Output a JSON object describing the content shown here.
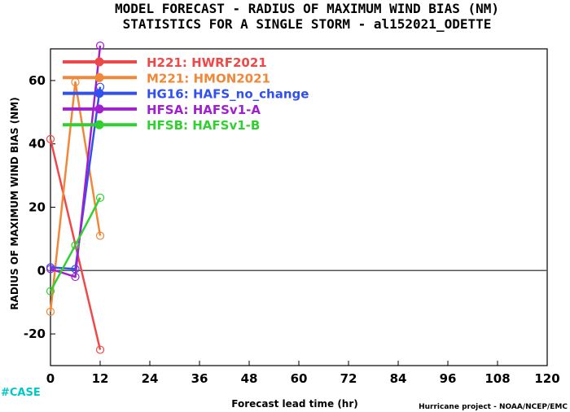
{
  "chart_data": {
    "type": "line",
    "title": "MODEL FORECAST - RADIUS OF MAXIMUM WIND BIAS (NM)",
    "subtitle": "STATISTICS FOR A SINGLE STORM - al152021_ODETTE",
    "xlabel": "Forecast lead time (hr)",
    "ylabel": "RADIUS OF MAXIMUM WIND BIAS (NM)",
    "xlim": [
      0,
      120
    ],
    "ylim": [
      -30,
      70
    ],
    "xticks": [
      0,
      12,
      24,
      36,
      48,
      60,
      72,
      84,
      96,
      108,
      120
    ],
    "yticks": [
      -20,
      0,
      20,
      40,
      60
    ],
    "zero_line": true,
    "legend_position": "top-left",
    "series": [
      {
        "name": "H221: HWRF2021",
        "color": "#f04848",
        "x": [
          0,
          12
        ],
        "y": [
          41.5,
          -25
        ]
      },
      {
        "name": "M221: HMON2021",
        "color": "#f08838",
        "x": [
          0,
          6,
          12
        ],
        "y": [
          -13,
          59.5,
          11
        ]
      },
      {
        "name": "HG16: HAFS_no_change",
        "color": "#3050f0",
        "x": [
          0,
          6,
          12
        ],
        "y": [
          1,
          0.5,
          58
        ]
      },
      {
        "name": "HFSA: HAFSv1-A",
        "color": "#a020d0",
        "x": [
          0,
          6,
          12
        ],
        "y": [
          0.5,
          -2,
          71
        ]
      },
      {
        "name": "HFSB: HAFSv1-B",
        "color": "#30d030",
        "x": [
          0,
          6,
          12
        ],
        "y": [
          -6.5,
          8,
          23
        ]
      }
    ]
  },
  "footer": {
    "tag": "#CASE",
    "tag_color": "#00c8c8",
    "credit": "Hurricane project - NOAA/NCEP/EMC"
  }
}
